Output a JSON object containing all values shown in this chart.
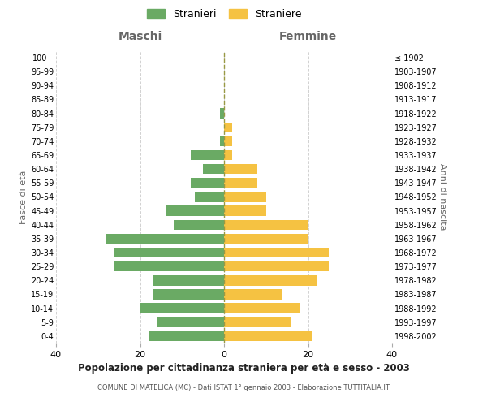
{
  "age_groups": [
    "0-4",
    "5-9",
    "10-14",
    "15-19",
    "20-24",
    "25-29",
    "30-34",
    "35-39",
    "40-44",
    "45-49",
    "50-54",
    "55-59",
    "60-64",
    "65-69",
    "70-74",
    "75-79",
    "80-84",
    "85-89",
    "90-94",
    "95-99",
    "100+"
  ],
  "birth_years": [
    "1998-2002",
    "1993-1997",
    "1988-1992",
    "1983-1987",
    "1978-1982",
    "1973-1977",
    "1968-1972",
    "1963-1967",
    "1958-1962",
    "1953-1957",
    "1948-1952",
    "1943-1947",
    "1938-1942",
    "1933-1937",
    "1928-1932",
    "1923-1927",
    "1918-1922",
    "1913-1917",
    "1908-1912",
    "1903-1907",
    "≤ 1902"
  ],
  "maschi": [
    18,
    16,
    20,
    17,
    17,
    26,
    26,
    28,
    12,
    14,
    7,
    8,
    5,
    8,
    1,
    0,
    1,
    0,
    0,
    0,
    0
  ],
  "femmine": [
    21,
    16,
    18,
    14,
    22,
    25,
    25,
    20,
    20,
    10,
    10,
    8,
    8,
    2,
    2,
    2,
    0,
    0,
    0,
    0,
    0
  ],
  "color_maschi": "#6aaa64",
  "color_femmine": "#f5c242",
  "title_bold": "Popolazione per cittadinanza straniera per età e sesso - 2003",
  "subtitle": "COMUNE DI MATELICA (MC) - Dati ISTAT 1° gennaio 2003 - Elaborazione TUTTITALIA.IT",
  "xlabel_left": "Maschi",
  "xlabel_right": "Femmine",
  "ylabel_left": "Fasce di età",
  "ylabel_right": "Anni di nascita",
  "xlim": 40,
  "legend_stranieri": "Stranieri",
  "legend_straniere": "Straniere",
  "background_color": "#ffffff",
  "grid_color": "#cccccc"
}
